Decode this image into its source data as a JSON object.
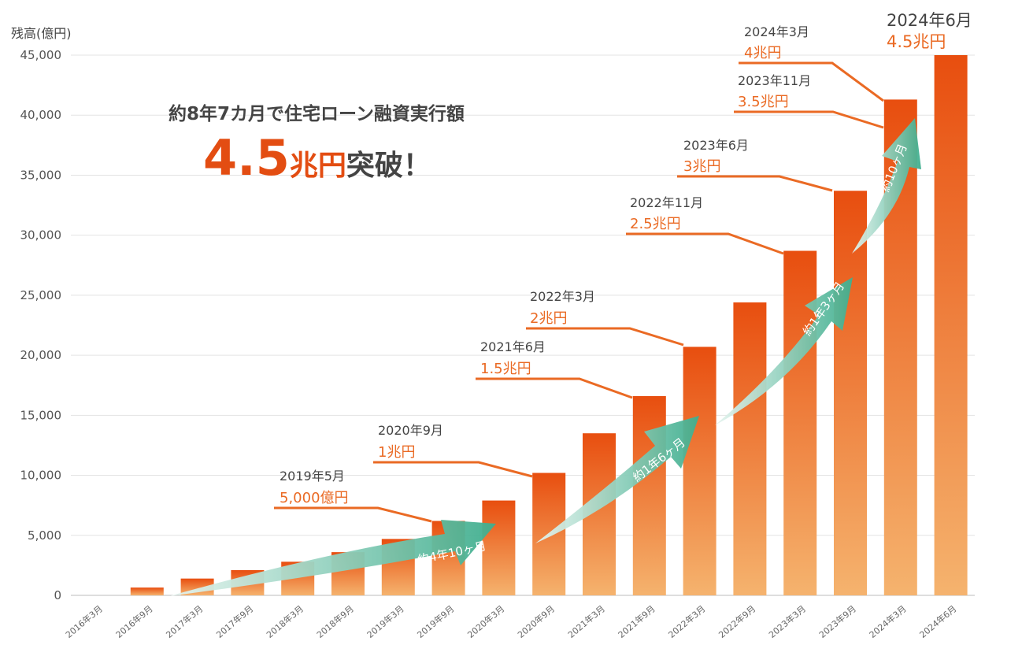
{
  "chart_data": {
    "type": "bar",
    "ylabel": "残高(億円)",
    "ylim": [
      0,
      45000
    ],
    "yticks": [
      "0",
      "5,000",
      "10,000",
      "15,000",
      "20,000",
      "25,000",
      "30,000",
      "35,000",
      "40,000",
      "45,000"
    ],
    "categories": [
      "2016年3月",
      "2016年9月",
      "2017年3月",
      "2017年9月",
      "2018年3月",
      "2018年9月",
      "2019年3月",
      "2019年9月",
      "2020年3月",
      "2020年9月",
      "2021年3月",
      "2021年9月",
      "2022年3月",
      "2022年9月",
      "2023年3月",
      "2023年9月",
      "2024年3月",
      "2024年6月"
    ],
    "values": [
      0,
      650,
      1400,
      2100,
      2800,
      3600,
      4700,
      6200,
      7900,
      10200,
      13500,
      16600,
      20700,
      24400,
      28700,
      33700,
      41300,
      45000
    ],
    "grid": true,
    "headline": {
      "line1": "約8年7カ月で住宅ローン融資実行額",
      "big_number": "4.5",
      "unit": "兆円",
      "suffix": "突破！"
    },
    "milestones": [
      {
        "date": "2019年5月",
        "amount": "5,000億円",
        "bar": 7
      },
      {
        "date": "2020年9月",
        "amount": "1兆円",
        "bar": 9
      },
      {
        "date": "2021年6月",
        "amount": "1.5兆円",
        "bar": 11
      },
      {
        "date": "2022年3月",
        "amount": "2兆円",
        "bar": 12
      },
      {
        "date": "2022年11月",
        "amount": "2.5兆円",
        "bar": 14
      },
      {
        "date": "2023年6月",
        "amount": "3兆円",
        "bar": 15
      },
      {
        "date": "2023年11月",
        "amount": "3.5兆円",
        "bar": 16
      },
      {
        "date": "2024年3月",
        "amount": "4兆円",
        "bar": 16
      }
    ],
    "final_milestone": {
      "date": "2024年6月",
      "amount": "4.5兆円"
    },
    "interval_arrows": [
      "約4年10ヶ月",
      "約1年6ヶ月",
      "約1年3ヶ月",
      "約10ヶ月"
    ],
    "colors": {
      "bar_top": "#e84e0f",
      "bar_bottom": "#f5b36e",
      "accent": "#ea6a24",
      "arrow_start": "#e6f4ef",
      "arrow_end": "#3fae8e"
    }
  }
}
